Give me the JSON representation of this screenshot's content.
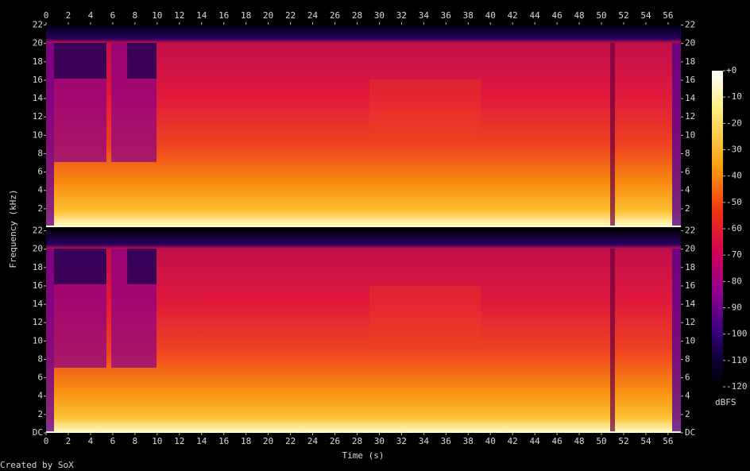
{
  "chart_data": {
    "type": "spectrogram",
    "xlabel": "Time (s)",
    "ylabel": "Frequency (kHz)",
    "zlabel": "dBFS",
    "footer": "Created by SoX",
    "xlim": [
      0,
      57.15
    ],
    "xticks": [
      0,
      2,
      4,
      6,
      8,
      10,
      12,
      14,
      16,
      18,
      20,
      22,
      24,
      26,
      28,
      30,
      32,
      34,
      36,
      38,
      40,
      42,
      44,
      46,
      48,
      50,
      52,
      54,
      56
    ],
    "channels": [
      {
        "ylim": [
          0,
          22.05
        ],
        "yticks": [
          2,
          4,
          6,
          8,
          10,
          12,
          14,
          16,
          18,
          20,
          22
        ]
      },
      {
        "ylim": [
          0,
          22.05
        ],
        "yticks": [
          {
            "value": 0,
            "label": "DC"
          },
          2,
          4,
          6,
          8,
          10,
          12,
          14,
          16,
          18,
          20,
          22
        ]
      }
    ],
    "zlim": [
      -120,
      0
    ],
    "zticks": [
      {
        "value": 0,
        "label": "+0"
      },
      -10,
      -20,
      -30,
      -40,
      -50,
      -60,
      -70,
      -80,
      -90,
      -100,
      -110,
      -120
    ]
  }
}
